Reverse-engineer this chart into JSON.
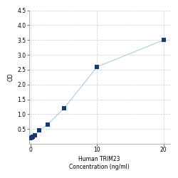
{
  "x": [
    0,
    0.156,
    0.313,
    0.625,
    1.25,
    2.5,
    5,
    10,
    20
  ],
  "y": [
    0.2,
    0.22,
    0.25,
    0.3,
    0.45,
    0.65,
    1.2,
    2.6,
    3.5
  ],
  "xlabel_line1": "Human TRIM23",
  "xlabel_line2": "Concentration (ng/ml)",
  "ylabel": "OD",
  "xlim": [
    -0.3,
    21
  ],
  "ylim": [
    0,
    4.5
  ],
  "yticks": [
    0.5,
    1.0,
    1.5,
    2.0,
    2.5,
    3.0,
    3.5,
    4.0,
    4.5
  ],
  "xticks": [
    0,
    10,
    20
  ],
  "xtick_label_x": 10,
  "line_color": "#aacce8",
  "marker_color": "#1a3a6b",
  "marker_size": 4,
  "grid_color": "#cccccc",
  "background_color": "#ffffff",
  "tick_fontsize": 5.5,
  "label_fontsize": 5.5,
  "figure_width": 2.5,
  "figure_height": 2.5,
  "figure_dpi": 100
}
